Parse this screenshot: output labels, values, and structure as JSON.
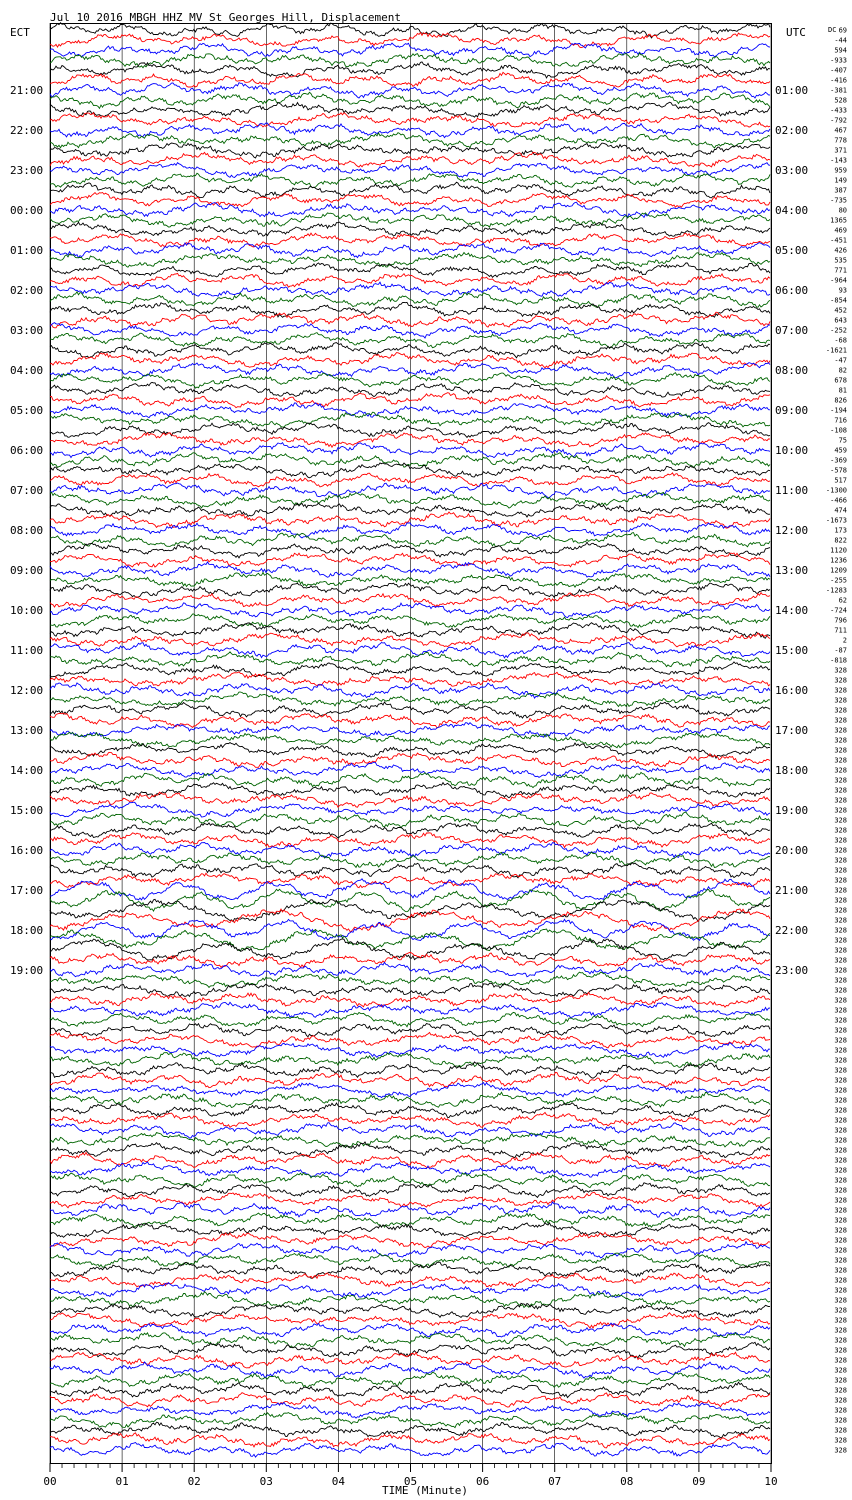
{
  "title": "Jul 10 2016 MBGH HHZ MV St Georges Hill, Displacement",
  "left_zone": "ECT",
  "right_zone": "UTC",
  "dc_header": "DC",
  "chart_data": {
    "type": "line",
    "subtype": "helicorder",
    "xlabel": "TIME (Minute)",
    "xlim": [
      0,
      10
    ],
    "x_ticks": [
      "00",
      "01",
      "02",
      "03",
      "04",
      "05",
      "06",
      "07",
      "08",
      "09",
      "10"
    ],
    "rows_per_hour": 4,
    "trace_colors": [
      "#000000",
      "#ff0000",
      "#0000ff",
      "#006400"
    ],
    "left_hour_labels": [
      "21:00",
      "22:00",
      "23:00",
      "00:00",
      "01:00",
      "02:00",
      "03:00",
      "04:00",
      "05:00",
      "06:00",
      "07:00",
      "08:00",
      "09:00",
      "10:00",
      "11:00",
      "12:00",
      "13:00",
      "14:00",
      "15:00",
      "16:00",
      "17:00",
      "18:00",
      "19:00"
    ],
    "right_hour_labels": [
      "01:00",
      "02:00",
      "03:00",
      "04:00",
      "05:00",
      "06:00",
      "07:00",
      "08:00",
      "09:00",
      "10:00",
      "11:00",
      "12:00",
      "13:00",
      "14:00",
      "15:00",
      "16:00",
      "17:00",
      "18:00",
      "19:00",
      "20:00",
      "21:00",
      "22:00",
      "23:00"
    ],
    "dc_offsets": [
      "69",
      "-44",
      "594",
      "-933",
      "-407",
      "-416",
      "-381",
      "528",
      "-433",
      "-792",
      "467",
      "778",
      "371",
      "-143",
      "959",
      "149",
      "387",
      "-735",
      "80",
      "1365",
      "469",
      "-451",
      "426",
      "535",
      "771",
      "-964",
      "93",
      "-854",
      "452",
      "643",
      "-252",
      "-68",
      "-1621",
      "-47",
      "82",
      "678",
      "81",
      "826",
      "-194",
      "716",
      "-108",
      "75",
      "459",
      "-369",
      "-578",
      "517",
      "-1300",
      "-466",
      "474",
      "-1673",
      "173",
      "822",
      "1120",
      "1236",
      "1209",
      "-255",
      "-1283",
      "62",
      "-724",
      "796",
      "711",
      "2",
      "-87",
      "-818",
      "328",
      "328",
      "328",
      "328",
      "328",
      "328",
      "328",
      "328",
      "328",
      "328",
      "328",
      "328",
      "328",
      "328",
      "328",
      "328",
      "328",
      "328",
      "328",
      "328",
      "328",
      "328",
      "328",
      "328",
      "328",
      "328",
      "328",
      "328",
      "328",
      "328",
      "328",
      "328",
      "328",
      "328",
      "328",
      "328",
      "328",
      "328",
      "328",
      "328",
      "328",
      "328",
      "328",
      "328",
      "328",
      "328",
      "328",
      "328",
      "328",
      "328",
      "328",
      "328",
      "328",
      "328",
      "328",
      "328",
      "328",
      "328",
      "328",
      "328",
      "328",
      "328",
      "328",
      "328",
      "328",
      "328",
      "328",
      "328",
      "328",
      "328",
      "328",
      "328",
      "328",
      "328",
      "328",
      "328",
      "328",
      "328",
      "328"
    ]
  }
}
